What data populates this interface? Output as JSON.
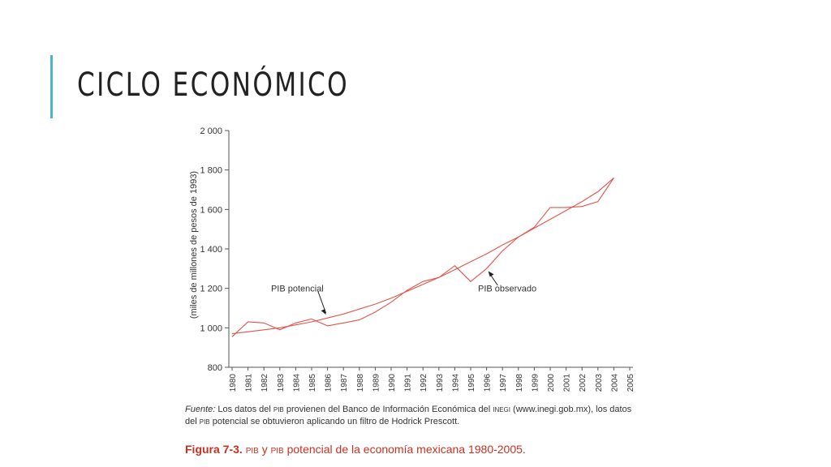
{
  "slide": {
    "title": "CICLO ECONÓMICO",
    "accent_color": "#4fb3c9"
  },
  "caption": {
    "fuente_label": "Fuente:",
    "text_1": " Los datos del ",
    "sc_1": "PIB",
    "text_2": " provienen del Banco de Información Económica del ",
    "sc_2": "INEGI",
    "text_3": " (www.inegi.gob.mx), los datos del ",
    "sc_3": "PIB",
    "text_4": " potencial se obtuvieron aplicando un filtro de Hodrick Prescott."
  },
  "figure": {
    "label": "Figura 7-3.",
    "sc_1": "PIB",
    "mid": " y ",
    "sc_2": "PIB",
    "rest": " potencial de la economía mexicana 1980-2005.",
    "color": "#c8311f"
  },
  "chart_data": {
    "type": "line",
    "ylabel": "(miles de millones de pesos de 1993)",
    "xlabel": "",
    "ylim": [
      800,
      2000
    ],
    "yticks": [
      800,
      1000,
      1200,
      1400,
      1600,
      1800,
      2000
    ],
    "ytick_labels": [
      "800",
      "1 000",
      "1 200",
      "1 400",
      "1 600",
      "1 800",
      "2 000"
    ],
    "x": [
      1980,
      1981,
      1982,
      1983,
      1984,
      1985,
      1986,
      1987,
      1988,
      1989,
      1990,
      1991,
      1992,
      1993,
      1994,
      1995,
      1996,
      1997,
      1998,
      1999,
      2000,
      2001,
      2002,
      2003,
      2004,
      2005
    ],
    "xtick_labels": [
      "1980",
      "1981",
      "1982",
      "1983",
      "1984",
      "1985",
      "1986",
      "1987",
      "1988",
      "1989",
      "1990",
      "1991",
      "1992",
      "1993",
      "1994",
      "1995",
      "1996",
      "1997",
      "1998",
      "1999",
      "2000",
      "2001",
      "2002",
      "2003",
      "2004",
      "2005"
    ],
    "line_color": "#e0554a",
    "series": [
      {
        "name": "PIB observado",
        "x": [
          1980,
          1981,
          1982,
          1983,
          1984,
          1985,
          1986,
          1987,
          1988,
          1989,
          1990,
          1991,
          1992,
          1993,
          1994,
          1995,
          1996,
          1997,
          1998,
          1999,
          2000,
          2001,
          2002,
          2003,
          2004
        ],
        "values": [
          955,
          1030,
          1025,
          990,
          1025,
          1045,
          1010,
          1025,
          1040,
          1080,
          1130,
          1190,
          1235,
          1255,
          1315,
          1235,
          1300,
          1390,
          1460,
          1510,
          1610,
          1610,
          1615,
          1640,
          1760
        ]
      },
      {
        "name": "PIB potencial",
        "x": [
          1980,
          1981,
          1982,
          1983,
          1984,
          1985,
          1986,
          1987,
          1988,
          1989,
          1990,
          1991,
          1992,
          1993,
          1994,
          1995,
          1996,
          1997,
          1998,
          1999,
          2000,
          2001,
          2002,
          2003,
          2004
        ],
        "values": [
          970,
          980,
          990,
          1000,
          1015,
          1030,
          1050,
          1070,
          1095,
          1120,
          1150,
          1185,
          1220,
          1255,
          1295,
          1335,
          1375,
          1420,
          1460,
          1505,
          1550,
          1595,
          1640,
          1690,
          1760
        ]
      }
    ],
    "annotations": [
      {
        "text": "PIB potencial",
        "series": "PIB potencial",
        "arrow_to_year": 1986
      },
      {
        "text": "PIB observado",
        "series": "PIB observado",
        "arrow_to_year": 1996
      }
    ],
    "grid": false
  }
}
